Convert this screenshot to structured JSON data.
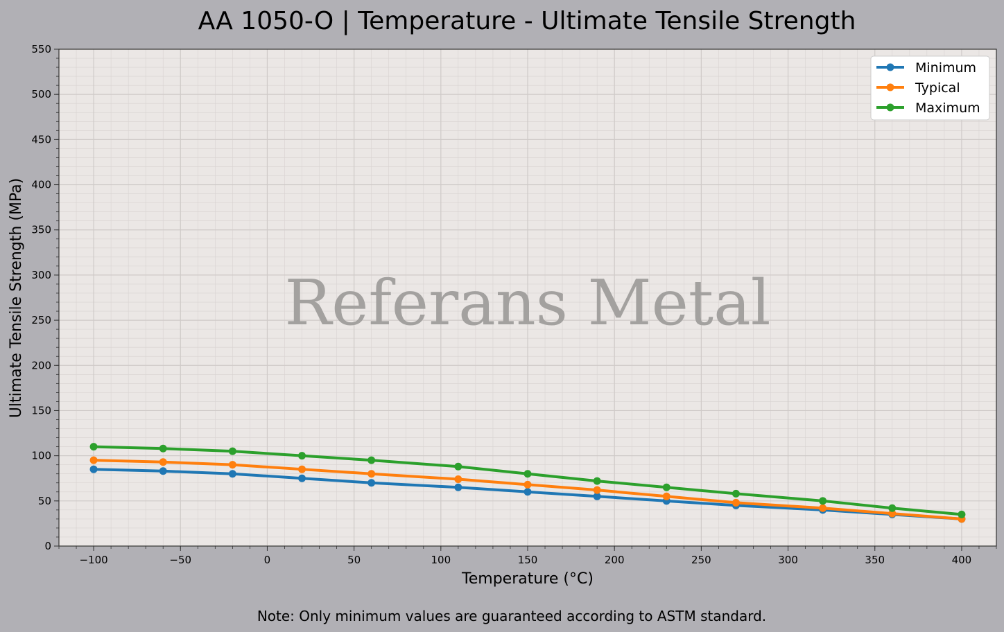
{
  "chart_data": {
    "type": "line",
    "title": "AA 1050-O | Temperature - Ultimate Tensile Strength",
    "xlabel": "Temperature (°C)",
    "ylabel": "Ultimate Tensile Strength (MPa)",
    "xlim": [
      -120,
      420
    ],
    "ylim": [
      0,
      550
    ],
    "xticks": [
      -100,
      -50,
      0,
      50,
      100,
      150,
      200,
      250,
      300,
      350,
      400
    ],
    "xtick_labels": [
      "−100",
      "−50",
      "0",
      "50",
      "100",
      "150",
      "200",
      "250",
      "300",
      "350",
      "400"
    ],
    "yticks": [
      0,
      50,
      100,
      150,
      200,
      250,
      300,
      350,
      400,
      450,
      500,
      550
    ],
    "grid": true,
    "minor_grid": true,
    "legend_position": "top-right",
    "x": [
      -100,
      -60,
      -20,
      20,
      60,
      110,
      150,
      190,
      230,
      270,
      320,
      360,
      400
    ],
    "series": [
      {
        "name": "Minimum",
        "color": "#1f77b4",
        "values": [
          85,
          83,
          80,
          75,
          70,
          65,
          60,
          55,
          50,
          45,
          40,
          35,
          30
        ]
      },
      {
        "name": "Typical",
        "color": "#ff7f0e",
        "values": [
          95,
          93,
          90,
          85,
          80,
          74,
          68,
          62,
          55,
          48,
          42,
          36,
          30
        ]
      },
      {
        "name": "Maximum",
        "color": "#2ca02c",
        "values": [
          110,
          108,
          105,
          100,
          95,
          88,
          80,
          72,
          65,
          58,
          50,
          42,
          35
        ]
      }
    ],
    "watermark": "Referans Metal",
    "note": "Note: Only minimum values are guaranteed according to ASTM standard."
  }
}
